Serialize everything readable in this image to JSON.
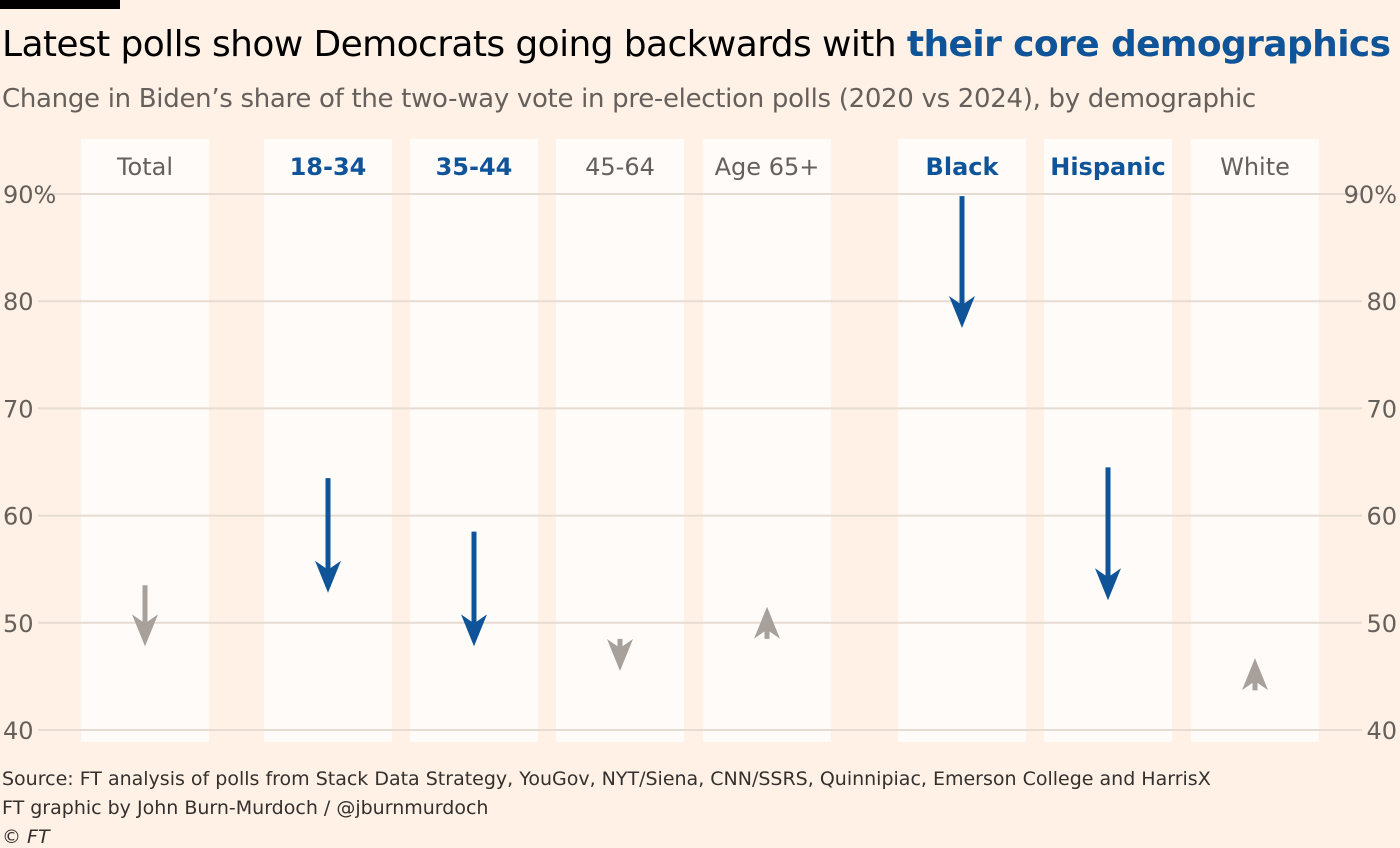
{
  "title": {
    "main": "Latest polls show Democrats going backwards with ",
    "highlight": "their core demographics"
  },
  "subtitle": "Change in Biden’s share of the two-way vote in pre-election polls (2020 vs 2024), by demographic",
  "footer": {
    "source": "Source: FT analysis of polls from Stack Data Strategy, YouGov, NYT/Siena, CNN/SSRS, Quinnipiac, Emerson College and HarrisX",
    "credit": "FT graphic by John Burn-Murdoch / @jburnmurdoch",
    "copyright": "© FT"
  },
  "colors": {
    "background": "#FFF1E5",
    "panel": "#FFFBF8",
    "highlight": "#0F5499",
    "muted": "#A7A09B",
    "grid": "#E6DCD2",
    "axis_text": "#66605C"
  },
  "chart_data": {
    "type": "arrow",
    "title": "Latest polls show Democrats going backwards with their core demographics",
    "subtitle": "Change in Biden’s share of the two-way vote in pre-election polls (2020 vs 2024), by demographic",
    "y_unit": "%",
    "ylim": [
      40,
      90
    ],
    "yticks": [
      40,
      50,
      60,
      70,
      80,
      90
    ],
    "ytick_labels": [
      "40",
      "50",
      "60",
      "70",
      "80",
      "90%"
    ],
    "grid": true,
    "categories": [
      {
        "label": "Total",
        "start_2020": 53.5,
        "end_2024": 47.8,
        "highlight": false
      },
      {
        "label": "18-34",
        "start_2020": 63.5,
        "end_2024": 52.8,
        "highlight": true
      },
      {
        "label": "35-44",
        "start_2020": 58.5,
        "end_2024": 47.8,
        "highlight": true
      },
      {
        "label": "45-64",
        "start_2020": 48.5,
        "end_2024": 45.5,
        "highlight": false
      },
      {
        "label": "Age 65+",
        "start_2020": 48.5,
        "end_2024": 51.5,
        "highlight": false
      },
      {
        "label": "Black",
        "start_2020": 89.8,
        "end_2024": 77.5,
        "highlight": true
      },
      {
        "label": "Hispanic",
        "start_2020": 64.5,
        "end_2024": 52.1,
        "highlight": true
      },
      {
        "label": "White",
        "start_2020": 43.7,
        "end_2024": 46.7,
        "highlight": false
      }
    ]
  }
}
